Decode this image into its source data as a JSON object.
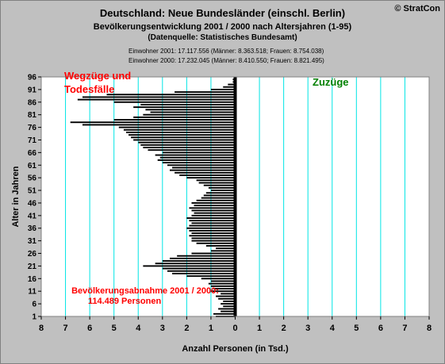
{
  "header": {
    "title": "Deutschland: Neue Bundesländer (einschl. Berlin)",
    "subtitle": "Bevölkerungsentwicklung 2001 / 2000  nach Altersjahren (1-95)",
    "source": "(Datenquelle: Statistisches Bundesamt)",
    "info_2001": "Einwohner 2001: 17.117.556  (Männer: 8.363.518; Frauen: 8.754.038)",
    "info_2000": "Einwohner 2000: 17.232.045  (Männer: 8.410.550; Frauen: 8.821.495)",
    "copyright": "© StratCon"
  },
  "colors": {
    "background": "#c0c0c0",
    "plot_background": "#ffffff",
    "gridline": "#00e5e5",
    "bar": "#000000",
    "annotation_red": "#ff0000",
    "annotation_green": "#008000"
  },
  "chart_data": {
    "type": "bar",
    "orientation": "horizontal",
    "xlabel": "Anzahl Personen (in Tsd.)",
    "ylabel": "Alter in Jahren",
    "xlim": [
      -8,
      8
    ],
    "ylim": [
      1,
      96
    ],
    "x_tick_labels": [
      "8",
      "7",
      "6",
      "5",
      "4",
      "3",
      "2",
      "1",
      "0",
      "1",
      "2",
      "3",
      "4",
      "5",
      "6",
      "7",
      "8"
    ],
    "y_ticks": [
      1,
      6,
      11,
      16,
      21,
      26,
      31,
      36,
      41,
      46,
      51,
      56,
      61,
      66,
      71,
      76,
      81,
      86,
      91,
      96
    ],
    "grid": true,
    "annotations": {
      "left_label_line1": "Wegzüge und",
      "left_label_line2": "Todesfälle",
      "right_label": "Zuzüge",
      "summary_line1": "Bevölkerungsabnahme 2001 / 2000:",
      "summary_line2": "114.489 Personen"
    },
    "series": [
      {
        "ages": [
          1,
          2,
          3,
          4,
          5,
          6,
          7,
          8,
          9,
          10,
          11,
          12,
          13,
          14,
          15,
          16,
          17,
          18,
          19,
          20,
          21,
          22,
          23,
          24,
          25,
          26,
          27,
          28,
          29,
          30,
          31,
          32,
          33,
          34,
          35,
          36,
          37,
          38,
          39,
          40,
          41,
          42,
          43,
          44,
          45,
          46,
          47,
          48,
          49,
          50,
          51,
          52,
          53,
          54,
          55,
          56,
          57,
          58,
          59,
          60,
          61,
          62,
          63,
          64,
          65,
          66,
          67,
          68,
          69,
          70,
          71,
          72,
          73,
          74,
          75,
          76,
          77,
          78,
          79,
          80,
          81,
          82,
          83,
          84,
          85,
          86,
          87,
          88,
          89,
          90,
          91,
          92,
          93,
          94,
          95
        ],
        "values": [
          -0.8,
          -0.9,
          -0.6,
          -0.7,
          -0.5,
          -0.6,
          -0.5,
          -0.7,
          -0.8,
          -0.6,
          -1.0,
          -0.9,
          -1.0,
          -1.1,
          -1.0,
          -1.4,
          -2.0,
          -2.6,
          -2.8,
          -3.0,
          -3.8,
          -3.3,
          -3.0,
          -2.7,
          -2.4,
          -1.8,
          -1.0,
          -0.8,
          -1.2,
          -1.6,
          -1.8,
          -1.8,
          -1.9,
          -1.8,
          -1.9,
          -2.0,
          -1.9,
          -1.8,
          -1.9,
          -2.0,
          -1.8,
          -1.7,
          -1.8,
          -1.9,
          -1.7,
          -1.8,
          -1.6,
          -1.4,
          -1.3,
          -1.2,
          -1.0,
          -1.1,
          -1.3,
          -1.5,
          -1.6,
          -2.0,
          -2.3,
          -2.5,
          -2.7,
          -2.6,
          -2.8,
          -3.0,
          -3.2,
          -3.1,
          -3.3,
          -3.0,
          -3.6,
          -3.8,
          -3.9,
          -4.0,
          -4.2,
          -4.3,
          -4.4,
          -4.5,
          -4.6,
          -4.8,
          -6.3,
          -6.8,
          -5.0,
          -4.2,
          -3.8,
          -3.5,
          -3.7,
          -4.2,
          -3.9,
          -5.0,
          -6.5,
          -6.3,
          -5.3,
          -2.5,
          -1.0,
          -0.5,
          -0.3,
          -0.1,
          -0.1
        ]
      }
    ]
  }
}
